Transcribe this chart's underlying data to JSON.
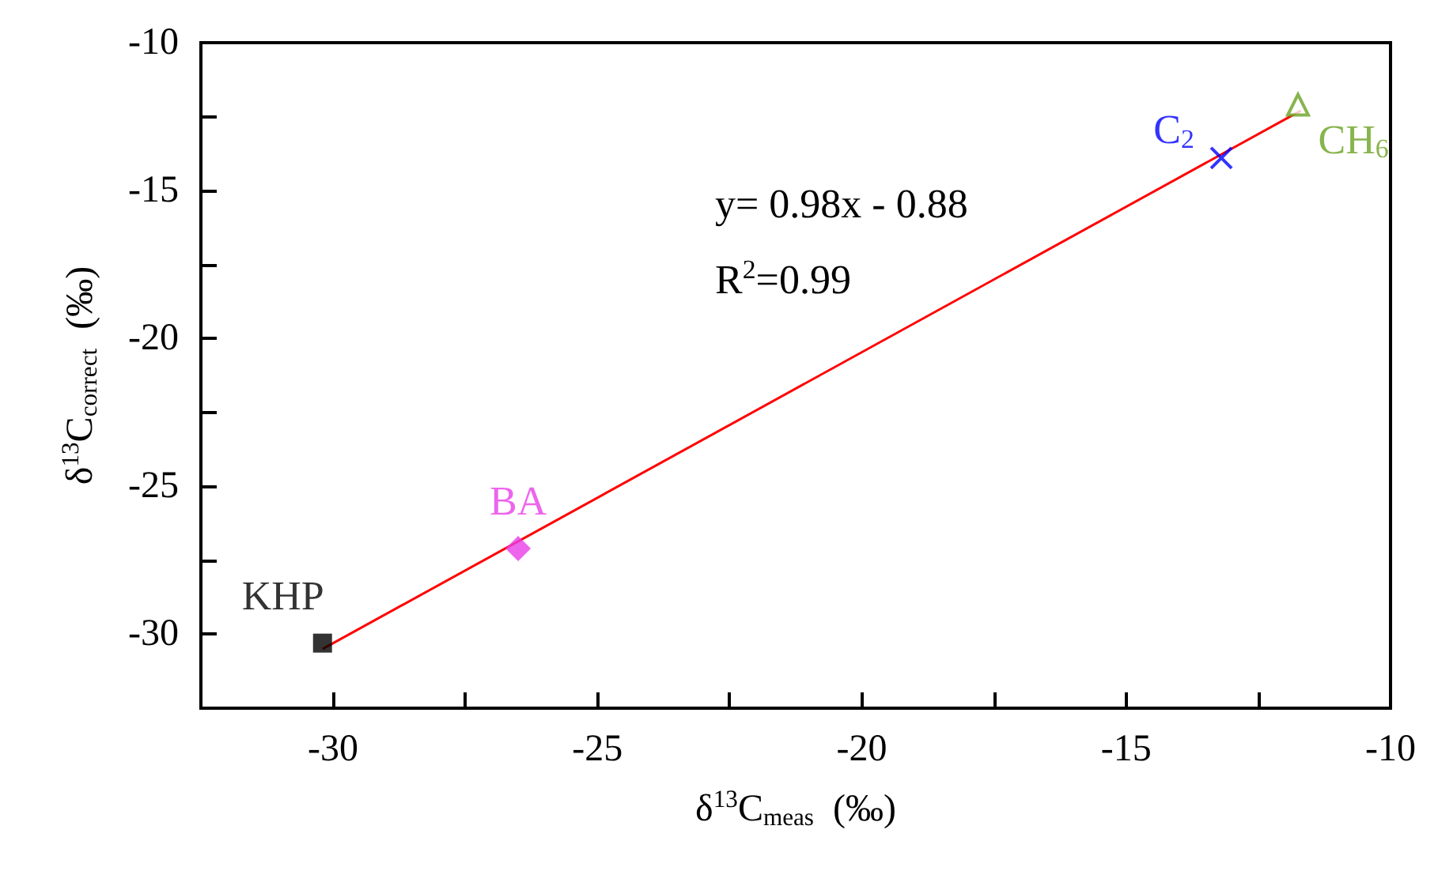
{
  "chart_data": {
    "type": "scatter",
    "xlabel": "δ$^{13}$C$_{meas}$  (‰)",
    "ylabel": "δ$^{13}$C$_{correct}$  (‰)",
    "xlim": [
      -32.5,
      -10
    ],
    "ylim": [
      -32.5,
      -10
    ],
    "xticks": [
      {
        "value": -32.5,
        "label": null
      },
      -30,
      {
        "value": -27.5,
        "label": null
      },
      -25,
      {
        "value": -22.5,
        "label": null
      },
      -20,
      {
        "value": -17.5,
        "label": null
      },
      -15,
      {
        "value": -12.5,
        "label": null
      },
      -10
    ],
    "yticks": [
      -30,
      {
        "value": -27.5,
        "label": null
      },
      -25,
      {
        "value": -22.5,
        "label": null
      },
      -20,
      {
        "value": -17.5,
        "label": null
      },
      -15,
      {
        "value": -12.5,
        "label": null
      },
      -10
    ],
    "grid": false,
    "series": [
      {
        "name": "KHP",
        "color": "#000000",
        "marker": "square",
        "x": [
          -30.2
        ],
        "values": [
          -30.3
        ]
      },
      {
        "name": "BA",
        "color": "#e83ee8",
        "marker": "diamond",
        "x": [
          -26.5
        ],
        "values": [
          -27.1
        ]
      },
      {
        "name": "C$_{2}$",
        "color": "#0000ff",
        "marker": "cross",
        "x": [
          -13.2
        ],
        "values": [
          -13.9
        ]
      },
      {
        "name": "CH$_{6}$",
        "color": "#6aa121",
        "marker": "triangle",
        "x": [
          -11.75
        ],
        "values": [
          -12.1
        ]
      },
      {
        "type": "line",
        "color": "#ff0000",
        "marker": "none",
        "x": [
          -30.2,
          -11.7
        ],
        "values": [
          -30.5,
          -12.3
        ]
      }
    ],
    "annotations": [
      "y= 0.98x - 0.88",
      "R$^{2}$=0.99"
    ]
  }
}
